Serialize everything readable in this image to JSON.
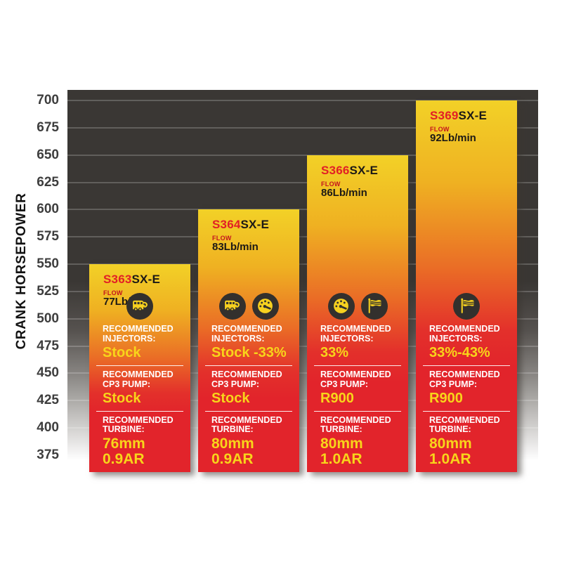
{
  "chart_data": {
    "type": "bar",
    "title": "",
    "ylabel": "CRANK HORSEPOWER",
    "ylim": [
      360,
      710
    ],
    "yticks": [
      700,
      675,
      650,
      625,
      600,
      575,
      550,
      525,
      500,
      475,
      450,
      425,
      400,
      375
    ],
    "grid": true,
    "legend": "none",
    "colors": {
      "bar_gradient_top": "#f2d127",
      "bar_gradient_bottom": "#e2242b",
      "model_accent_red": "#e21f26",
      "value_yellow": "#f8d51a",
      "label_white": "#ffffff",
      "plot_background_dark": "#3a3734",
      "icon_circle": "#33302d",
      "icon_glyph": "#f6d11f"
    },
    "labels": {
      "flow": "FLOW",
      "injectors": "RECOMMENDED INJECTORS:",
      "cp3": "RECOMMENDED CP3 PUMP:",
      "turbine": "RECOMMENDED TURBINE:"
    },
    "bars": [
      {
        "model_prefix": "S363",
        "model_suffix": "SX-E",
        "flow": "77Lb/min",
        "hp": 550,
        "icons": [
          "rv-icon"
        ],
        "injectors": "Stock",
        "cp3": "Stock",
        "turbine_size": "76mm",
        "turbine_ar": "0.9AR"
      },
      {
        "model_prefix": "S364",
        "model_suffix": "SX-E",
        "flow": "83Lb/min",
        "hp": 600,
        "icons": [
          "rv-icon",
          "gauge-icon"
        ],
        "injectors": "Stock -33%",
        "cp3": "Stock",
        "turbine_size": "80mm",
        "turbine_ar": "0.9AR"
      },
      {
        "model_prefix": "S366",
        "model_suffix": "SX-E",
        "flow": "86Lb/min",
        "hp": 650,
        "icons": [
          "gauge-icon",
          "flag-icon"
        ],
        "injectors": "33%",
        "cp3": "R900",
        "turbine_size": "80mm",
        "turbine_ar": "1.0AR"
      },
      {
        "model_prefix": "S369",
        "model_suffix": "SX-E",
        "flow": "92Lb/min",
        "hp": 700,
        "icons": [
          "flag-icon"
        ],
        "injectors": "33%-43%",
        "cp3": "R900",
        "turbine_size": "80mm",
        "turbine_ar": "1.0AR"
      }
    ]
  }
}
